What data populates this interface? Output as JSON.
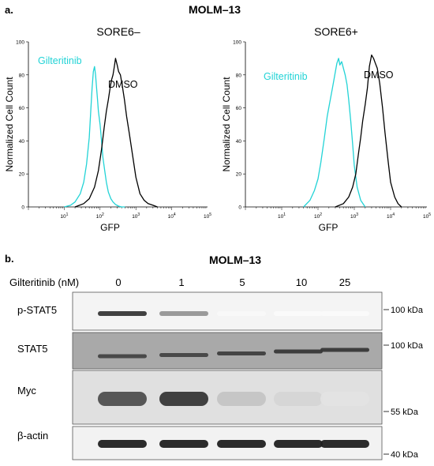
{
  "panel_a": {
    "label": "a.",
    "title": "MOLM–13"
  },
  "chart_data": [
    {
      "type": "line",
      "title": "SORE6–",
      "xlabel": "GFP",
      "ylabel": "Normalized Cell Count",
      "x_scale": "log",
      "xlim": [
        1,
        100000
      ],
      "ylim": [
        0,
        100
      ],
      "x_ticks": [
        "10^1",
        "10^2",
        "10^3",
        "10^4",
        "10^5"
      ],
      "y_ticks": [
        0,
        20,
        40,
        60,
        80,
        100
      ],
      "grid": false,
      "series": [
        {
          "name": "Gilteritinib",
          "color": "#22d3d6",
          "x": [
            10,
            15,
            20,
            28,
            35,
            42,
            50,
            55,
            60,
            65,
            70,
            75,
            80,
            85,
            90,
            100,
            110,
            120,
            135,
            150,
            170,
            200,
            230,
            270,
            330,
            400,
            500
          ],
          "values": [
            0,
            1,
            3,
            8,
            15,
            26,
            42,
            58,
            72,
            82,
            85,
            80,
            72,
            65,
            58,
            50,
            40,
            30,
            22,
            15,
            9,
            5,
            3,
            1.5,
            0.5,
            0,
            0
          ]
        },
        {
          "name": "DMSO",
          "color": "#000000",
          "x": [
            20,
            35,
            50,
            70,
            90,
            110,
            130,
            150,
            170,
            190,
            210,
            230,
            250,
            270,
            300,
            330,
            370,
            420,
            480,
            550,
            650,
            800,
            1000,
            1300,
            1700,
            2200,
            3000,
            4000
          ],
          "values": [
            0,
            2,
            5,
            12,
            22,
            35,
            48,
            58,
            65,
            72,
            77,
            80,
            85,
            90,
            86,
            82,
            80,
            73,
            65,
            55,
            45,
            32,
            18,
            8,
            4,
            2,
            1,
            0
          ]
        }
      ]
    },
    {
      "type": "line",
      "title": "SORE6+",
      "xlabel": "GFP",
      "ylabel": "Normalized Cell Count",
      "x_scale": "log",
      "xlim": [
        1,
        100000
      ],
      "ylim": [
        0,
        100
      ],
      "x_ticks": [
        "10^1",
        "10^2",
        "10^3",
        "10^4",
        "10^5"
      ],
      "y_ticks": [
        0,
        20,
        40,
        60,
        80,
        100
      ],
      "grid": false,
      "series": [
        {
          "name": "Gilteritinib",
          "color": "#22d3d6",
          "x": [
            40,
            60,
            80,
            100,
            120,
            150,
            180,
            210,
            250,
            290,
            330,
            370,
            400,
            450,
            500,
            560,
            630,
            700,
            800,
            900,
            1000,
            1200,
            1500,
            2000
          ],
          "values": [
            0,
            4,
            10,
            17,
            27,
            42,
            55,
            63,
            72,
            80,
            87,
            90,
            86,
            88,
            84,
            80,
            74,
            65,
            52,
            38,
            25,
            12,
            4,
            0
          ]
        },
        {
          "name": "DMSO",
          "color": "#000000",
          "x": [
            300,
            500,
            700,
            900,
            1100,
            1300,
            1500,
            1700,
            2000,
            2300,
            2600,
            3000,
            3400,
            3800,
            4300,
            5000,
            6000,
            7000,
            8500,
            10000,
            13000,
            16000,
            20000
          ],
          "values": [
            0,
            2,
            6,
            12,
            20,
            32,
            42,
            52,
            62,
            72,
            85,
            92,
            90,
            87,
            84,
            75,
            60,
            45,
            28,
            15,
            6,
            2,
            0
          ]
        }
      ]
    }
  ],
  "panel_b": {
    "label": "b.",
    "title": "MOLM–13",
    "row_label": "Gilteritinib (nM)",
    "lanes": [
      "0",
      "1",
      "5",
      "10",
      "25"
    ],
    "blots": [
      {
        "name": "p-STAT5",
        "marker": "100 kDa",
        "intensities": [
          0.85,
          0.45,
          0.03,
          0.02,
          0.02
        ]
      },
      {
        "name": "STAT5",
        "marker": "100 kDa",
        "intensities": [
          0.8,
          0.8,
          0.82,
          0.85,
          0.85
        ]
      },
      {
        "name": "Myc",
        "marker": "55 kDa",
        "intensities": [
          0.75,
          0.85,
          0.25,
          0.18,
          0.12
        ]
      },
      {
        "name": "β-actin",
        "marker": "40 kDa",
        "intensities": [
          0.95,
          0.95,
          0.95,
          0.95,
          0.95
        ]
      }
    ]
  }
}
